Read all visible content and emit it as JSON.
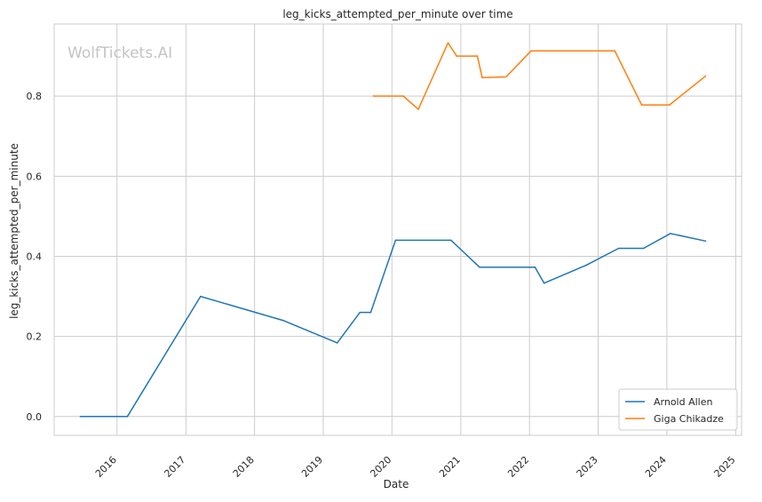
{
  "chart_data": {
    "type": "line",
    "title": "leg_kicks_attempted_per_minute over time",
    "xlabel": "Date",
    "ylabel": "leg_kicks_attempted_per_minute",
    "watermark": "WolfTickets.AI",
    "x_axis": {
      "type": "date",
      "range": [
        "2015-02-01",
        "2025-02-01"
      ],
      "ticks": [
        "2016",
        "2017",
        "2018",
        "2019",
        "2020",
        "2021",
        "2022",
        "2023",
        "2024",
        "2025"
      ]
    },
    "y_axis": {
      "range": [
        -0.047,
        0.98
      ],
      "ticks": [
        "0.0",
        "0.2",
        "0.4",
        "0.6",
        "0.8"
      ]
    },
    "grid": true,
    "legend_position": "bottom-right",
    "series": [
      {
        "name": "Arnold Allen",
        "color": "#1f77b4",
        "points": [
          [
            "2015-06-20",
            0.0
          ],
          [
            "2016-02-25",
            0.0
          ],
          [
            "2017-03-20",
            0.3
          ],
          [
            "2018-06-01",
            0.24
          ],
          [
            "2019-03-16",
            0.184
          ],
          [
            "2019-07-15",
            0.26
          ],
          [
            "2019-09-10",
            0.26
          ],
          [
            "2020-01-20",
            0.44
          ],
          [
            "2020-11-10",
            0.44
          ],
          [
            "2021-04-10",
            0.373
          ],
          [
            "2022-01-30",
            0.373
          ],
          [
            "2022-03-20",
            0.333
          ],
          [
            "2022-10-30",
            0.378
          ],
          [
            "2023-04-20",
            0.42
          ],
          [
            "2023-08-30",
            0.42
          ],
          [
            "2024-01-20",
            0.457
          ],
          [
            "2024-07-25",
            0.438
          ]
        ]
      },
      {
        "name": "Giga Chikadze",
        "color": "#ff7f0e",
        "points": [
          [
            "2019-09-25",
            0.8
          ],
          [
            "2020-03-01",
            0.8
          ],
          [
            "2020-05-20",
            0.767
          ],
          [
            "2020-10-25",
            0.933
          ],
          [
            "2020-12-10",
            0.9
          ],
          [
            "2021-03-30",
            0.9
          ],
          [
            "2021-04-25",
            0.846
          ],
          [
            "2021-08-30",
            0.848
          ],
          [
            "2022-01-10",
            0.913
          ],
          [
            "2023-03-30",
            0.913
          ],
          [
            "2023-08-20",
            0.778
          ],
          [
            "2024-01-15",
            0.778
          ],
          [
            "2024-07-25",
            0.85
          ]
        ]
      }
    ]
  }
}
